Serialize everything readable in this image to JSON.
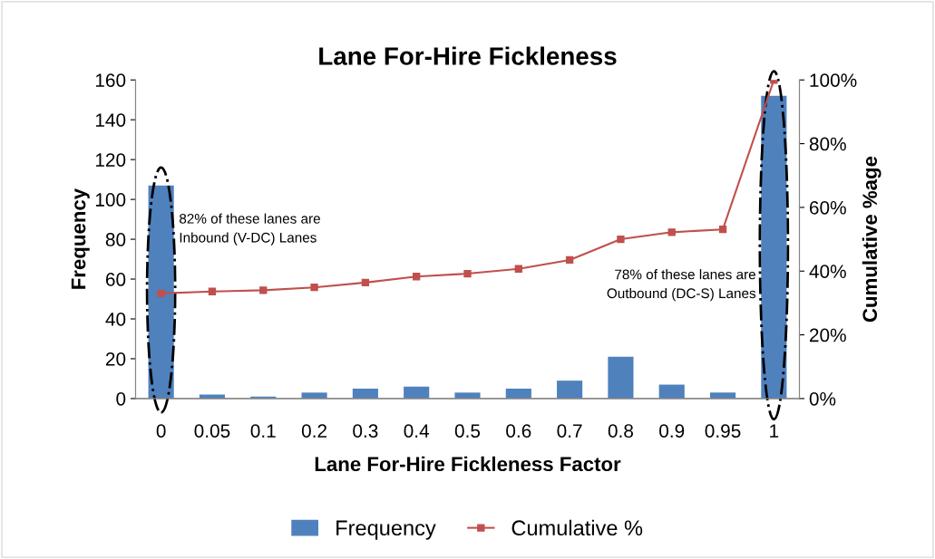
{
  "chart_data": {
    "type": "bar",
    "title": "Lane For-Hire Fickleness",
    "xlabel": "Lane For-Hire Fickleness Factor",
    "ylabel": "Frequency",
    "y2label": "Cumulative %age",
    "categories": [
      "0",
      "0.05",
      "0.1",
      "0.2",
      "0.3",
      "0.4",
      "0.5",
      "0.6",
      "0.7",
      "0.8",
      "0.9",
      "0.95",
      "1"
    ],
    "series": [
      {
        "name": "Frequency",
        "color": "#4f81bd",
        "values": [
          107,
          2,
          1,
          3,
          5,
          6,
          3,
          5,
          9,
          21,
          7,
          3,
          152
        ]
      },
      {
        "name": "Cumulative %",
        "type": "line",
        "axis": "y2",
        "color": "#c0504d",
        "marker": "square",
        "values": [
          33,
          33.6,
          34,
          34.9,
          36.4,
          38.3,
          39.2,
          40.7,
          43.5,
          50,
          52.2,
          53.1,
          100
        ]
      }
    ],
    "ylim": [
      0,
      160
    ],
    "yticks": [
      0,
      20,
      40,
      60,
      80,
      100,
      120,
      140,
      160
    ],
    "y2lim": [
      0,
      100
    ],
    "y2ticks": [
      {
        "value": 0,
        "label": "0%"
      },
      {
        "value": 20,
        "label": "20%"
      },
      {
        "value": 40,
        "label": "40%"
      },
      {
        "value": 60,
        "label": "60%"
      },
      {
        "value": 80,
        "label": "80%"
      },
      {
        "value": 100,
        "label": "100%"
      }
    ],
    "annotations": [
      "82% of these lanes are\nInbound (V-DC) Lanes",
      "78% of these lanes are\nOutbound (DC-S) Lanes"
    ],
    "grid": false,
    "legend": "bottom"
  }
}
